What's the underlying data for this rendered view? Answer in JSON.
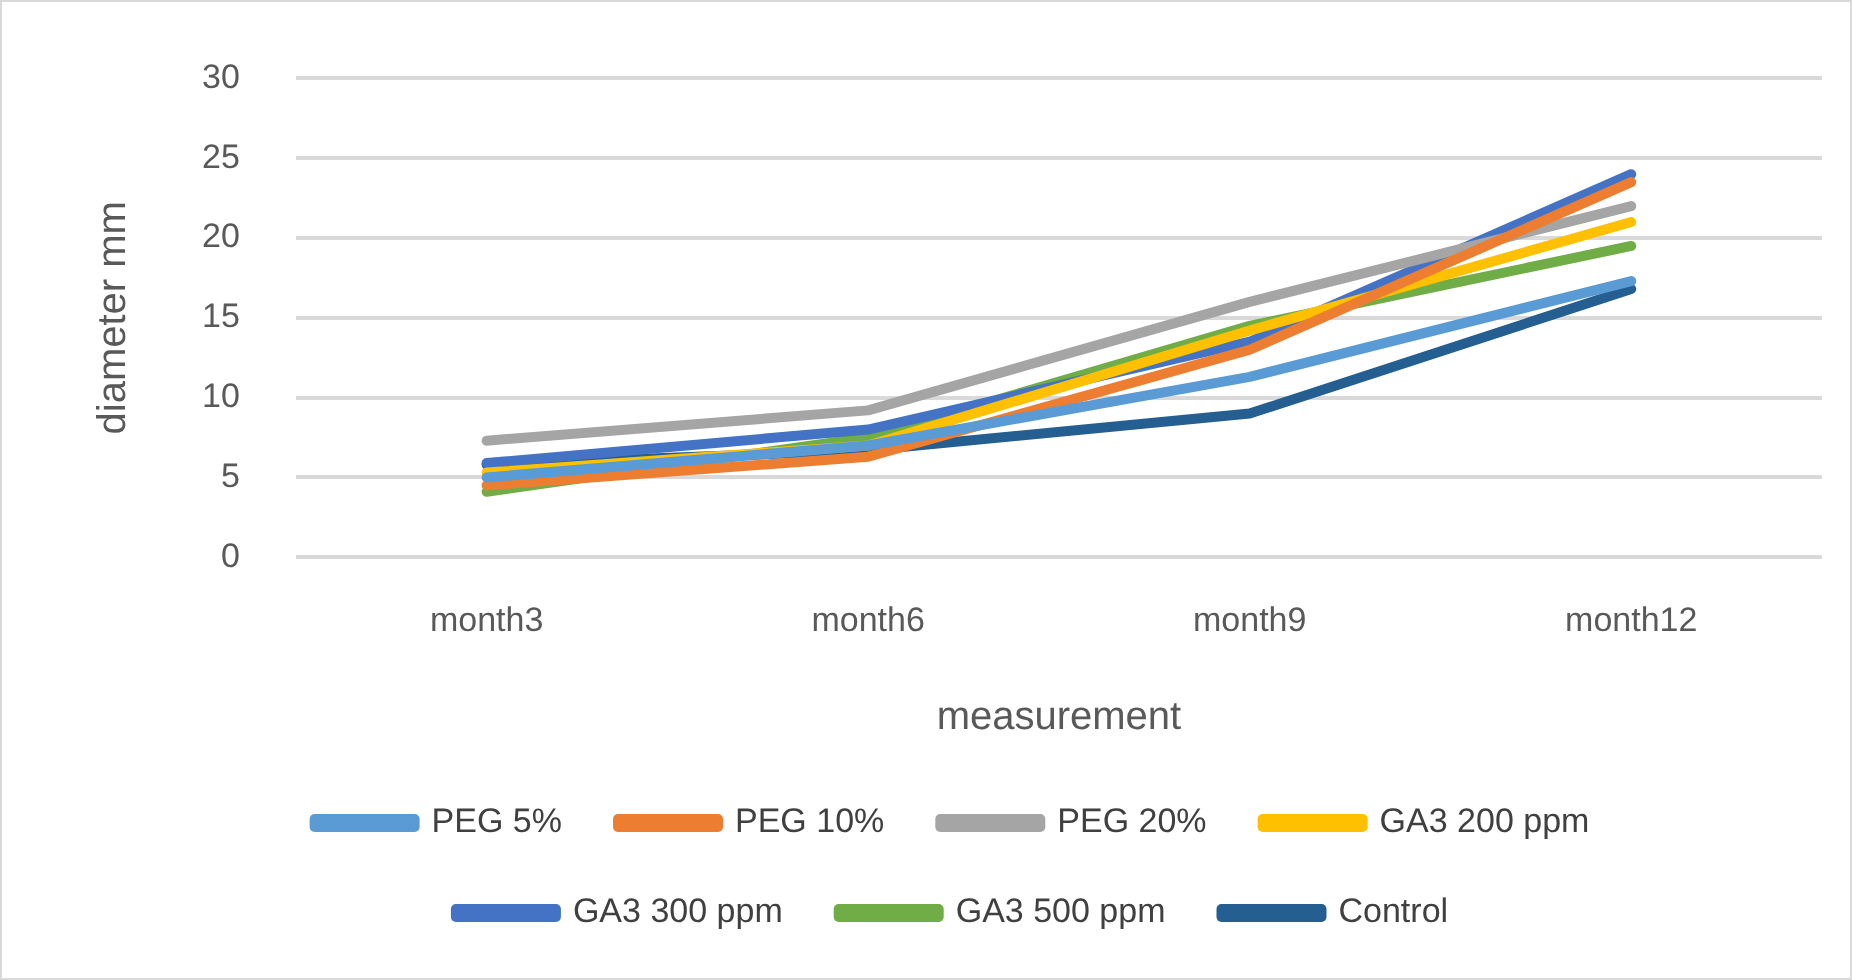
{
  "chart_data": {
    "type": "line",
    "xlabel": "measurement",
    "ylabel": "diameter mm",
    "categories": [
      "month3",
      "month6",
      "month9",
      "month12"
    ],
    "ylim": [
      0,
      30
    ],
    "yticks": [
      0,
      5,
      10,
      15,
      20,
      25,
      30
    ],
    "grid": "y",
    "legend": "bottom",
    "marker": "none",
    "line_style": "solid",
    "series": [
      {
        "name": "PEG 5%",
        "color": "#5b9bd5",
        "values": [
          5.0,
          7.0,
          11.3,
          17.3
        ]
      },
      {
        "name": "PEG 10%",
        "color": "#ed7d31",
        "values": [
          4.5,
          6.3,
          13.0,
          23.5
        ]
      },
      {
        "name": "PEG 20%",
        "color": "#a5a5a5",
        "values": [
          7.3,
          9.2,
          16.0,
          22.0
        ]
      },
      {
        "name": "GA3 200 ppm",
        "color": "#ffc000",
        "values": [
          5.3,
          7.0,
          14.2,
          21.0
        ]
      },
      {
        "name": "GA3 300 ppm",
        "color": "#4472c4",
        "values": [
          5.9,
          8.0,
          13.5,
          24.0
        ]
      },
      {
        "name": "GA3 500 ppm",
        "color": "#70ad47",
        "values": [
          4.1,
          7.5,
          14.5,
          19.5
        ]
      },
      {
        "name": "Control",
        "color": "#255e91",
        "values": [
          5.8,
          6.7,
          9.0,
          16.8
        ]
      }
    ]
  }
}
